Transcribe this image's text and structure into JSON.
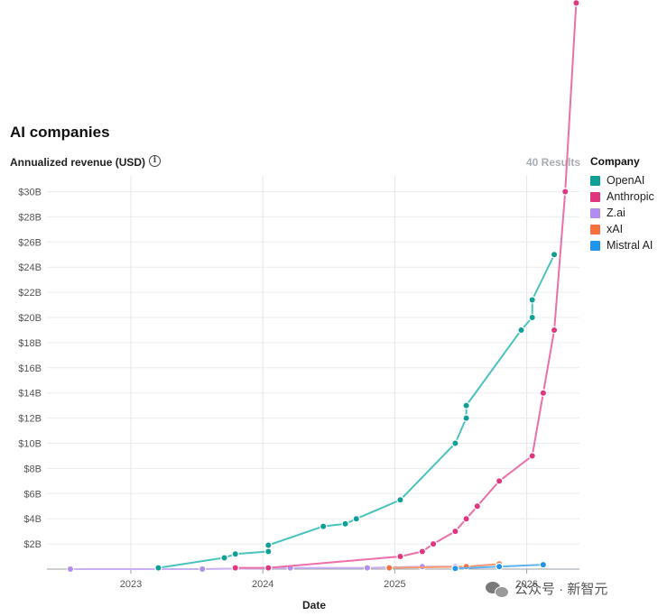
{
  "header": {
    "title": "AI companies",
    "ylabel": "Annualized revenue (USD)",
    "info_icon": "i",
    "results": "40 Results"
  },
  "legend": {
    "title": "Company",
    "items": [
      {
        "label": "OpenAI",
        "color": "#0e9f96"
      },
      {
        "label": "Anthropic",
        "color": "#e0357f"
      },
      {
        "label": "Z.ai",
        "color": "#b38cf0"
      },
      {
        "label": "xAI",
        "color": "#f4713f"
      },
      {
        "label": "Mistral AI",
        "color": "#1f95ee"
      }
    ]
  },
  "watermark": {
    "text": "公众号 · 新智元"
  },
  "chart_data": {
    "type": "line",
    "title": "AI companies",
    "xlabel": "Date",
    "ylabel": "Annualized revenue (USD)",
    "x_ticks": [
      "2023",
      "2024",
      "2025",
      "2026"
    ],
    "y_ticks": [
      "$2B",
      "$4B",
      "$6B",
      "$8B",
      "$10B",
      "$12B",
      "$14B",
      "$16B",
      "$18B",
      "$20B",
      "$22B",
      "$24B",
      "$26B",
      "$28B",
      "$30B"
    ],
    "xlim": [
      "2022-06",
      "2026-06"
    ],
    "ylim": [
      0,
      30.5
    ],
    "grid": true,
    "legend_position": "right",
    "series": [
      {
        "name": "OpenAI",
        "color": "#0e9f96",
        "line_color": "#4ac3bd",
        "points": [
          {
            "x": "2023-03",
            "y": 0.1
          },
          {
            "x": "2023-09",
            "y": 0.9
          },
          {
            "x": "2023-10",
            "y": 1.2
          },
          {
            "x": "2024-01",
            "y": 1.4
          },
          {
            "x": "2024-01",
            "y": 1.9
          },
          {
            "x": "2024-06",
            "y": 3.4
          },
          {
            "x": "2024-08",
            "y": 3.6
          },
          {
            "x": "2024-09",
            "y": 4.0
          },
          {
            "x": "2025-01",
            "y": 5.5
          },
          {
            "x": "2025-06",
            "y": 10.0
          },
          {
            "x": "2025-07",
            "y": 12.0
          },
          {
            "x": "2025-07",
            "y": 13.0
          },
          {
            "x": "2025-12",
            "y": 19.0
          },
          {
            "x": "2026-01",
            "y": 20.0
          },
          {
            "x": "2026-01",
            "y": 21.4
          },
          {
            "x": "2026-03",
            "y": 25.0
          }
        ]
      },
      {
        "name": "Anthropic",
        "color": "#e0357f",
        "line_color": "#ec6fa8",
        "points": [
          {
            "x": "2023-10",
            "y": 0.1
          },
          {
            "x": "2024-01",
            "y": 0.1
          },
          {
            "x": "2025-01",
            "y": 1.0
          },
          {
            "x": "2025-03",
            "y": 1.4
          },
          {
            "x": "2025-04",
            "y": 2.0
          },
          {
            "x": "2025-06",
            "y": 3.0
          },
          {
            "x": "2025-07",
            "y": 4.0
          },
          {
            "x": "2025-08",
            "y": 5.0
          },
          {
            "x": "2025-10",
            "y": 7.0
          },
          {
            "x": "2026-01",
            "y": 9.0
          },
          {
            "x": "2026-02",
            "y": 14.0
          },
          {
            "x": "2026-03",
            "y": 19.0
          },
          {
            "x": "2026-04",
            "y": 30.0
          },
          {
            "x": "2026-05",
            "y": 45.0
          }
        ]
      },
      {
        "name": "Z.ai",
        "color": "#b38cf0",
        "line_color": "#cbb0f5",
        "points": [
          {
            "x": "2022-07",
            "y": 0.0
          },
          {
            "x": "2023-07",
            "y": 0.0
          },
          {
            "x": "2024-03",
            "y": 0.1
          },
          {
            "x": "2024-10",
            "y": 0.1
          },
          {
            "x": "2025-03",
            "y": 0.2
          },
          {
            "x": "2025-06",
            "y": 0.2
          }
        ]
      },
      {
        "name": "xAI",
        "color": "#f4713f",
        "line_color": "#f79a74",
        "points": [
          {
            "x": "2024-12",
            "y": 0.1
          },
          {
            "x": "2025-07",
            "y": 0.2
          },
          {
            "x": "2025-10",
            "y": 0.4
          }
        ]
      },
      {
        "name": "Mistral AI",
        "color": "#1f95ee",
        "line_color": "#5fb3f3",
        "points": [
          {
            "x": "2025-06",
            "y": 0.05
          },
          {
            "x": "2025-10",
            "y": 0.2
          },
          {
            "x": "2026-02",
            "y": 0.35
          }
        ]
      }
    ]
  }
}
